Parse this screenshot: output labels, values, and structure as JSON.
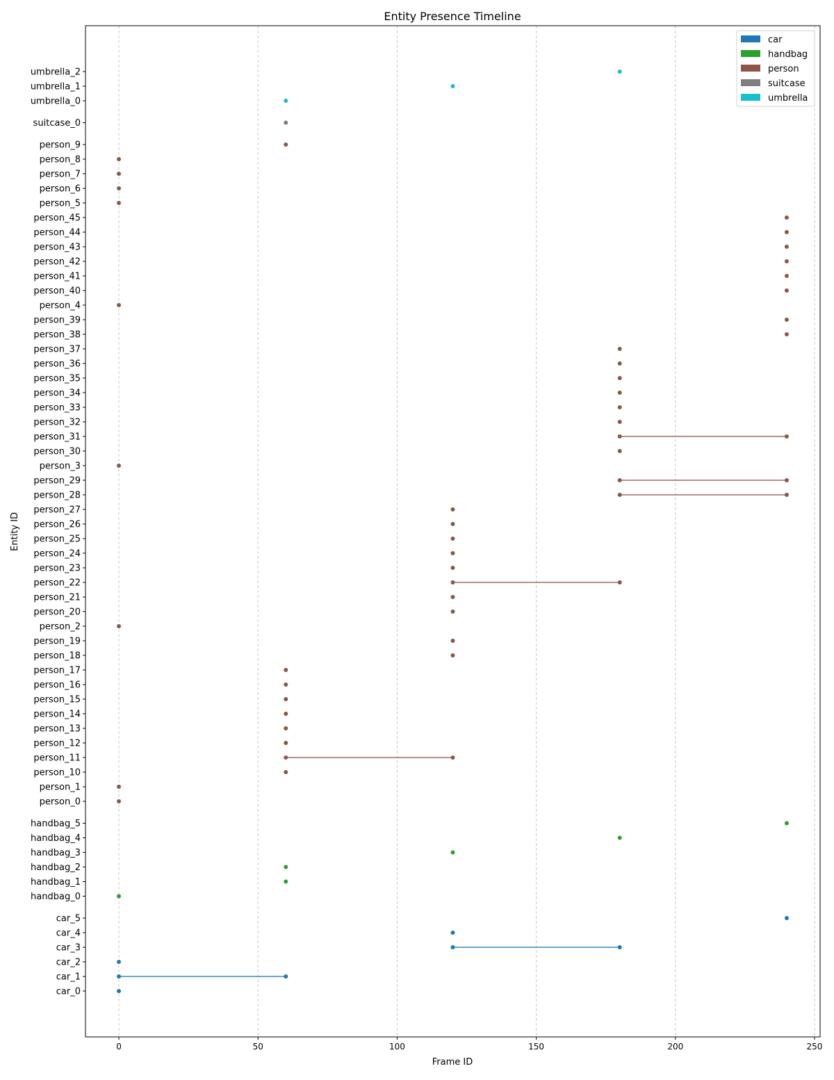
{
  "chart_data": {
    "type": "timeline-scatter",
    "title": "Entity Presence Timeline",
    "xlabel": "Frame ID",
    "ylabel": "Entity ID",
    "xlim": [
      -12,
      252
    ],
    "xticks": [
      0,
      50,
      100,
      150,
      200,
      250
    ],
    "grid": "x-dashed",
    "legend_placement": "top-right",
    "categories": [
      {
        "name": "car",
        "color": "#1f77b4"
      },
      {
        "name": "handbag",
        "color": "#2ca02c"
      },
      {
        "name": "person",
        "color": "#8c564b"
      },
      {
        "name": "suitcase",
        "color": "#7f7f7f"
      },
      {
        "name": "umbrella",
        "color": "#17becf"
      }
    ],
    "entities": [
      {
        "id": "car_0",
        "category": "car",
        "frames": [
          0
        ]
      },
      {
        "id": "car_1",
        "category": "car",
        "frames": [
          0,
          60
        ]
      },
      {
        "id": "car_2",
        "category": "car",
        "frames": [
          0
        ]
      },
      {
        "id": "car_3",
        "category": "car",
        "frames": [
          120,
          180
        ]
      },
      {
        "id": "car_4",
        "category": "car",
        "frames": [
          120
        ]
      },
      {
        "id": "car_5",
        "category": "car",
        "frames": [
          240
        ]
      },
      {
        "id": "handbag_0",
        "category": "handbag",
        "frames": [
          0
        ]
      },
      {
        "id": "handbag_1",
        "category": "handbag",
        "frames": [
          60
        ]
      },
      {
        "id": "handbag_2",
        "category": "handbag",
        "frames": [
          60
        ]
      },
      {
        "id": "handbag_3",
        "category": "handbag",
        "frames": [
          120
        ]
      },
      {
        "id": "handbag_4",
        "category": "handbag",
        "frames": [
          180
        ]
      },
      {
        "id": "handbag_5",
        "category": "handbag",
        "frames": [
          240
        ]
      },
      {
        "id": "person_0",
        "category": "person",
        "frames": [
          0
        ]
      },
      {
        "id": "person_1",
        "category": "person",
        "frames": [
          0
        ]
      },
      {
        "id": "person_10",
        "category": "person",
        "frames": [
          60
        ]
      },
      {
        "id": "person_11",
        "category": "person",
        "frames": [
          60,
          120
        ]
      },
      {
        "id": "person_12",
        "category": "person",
        "frames": [
          60
        ]
      },
      {
        "id": "person_13",
        "category": "person",
        "frames": [
          60
        ]
      },
      {
        "id": "person_14",
        "category": "person",
        "frames": [
          60
        ]
      },
      {
        "id": "person_15",
        "category": "person",
        "frames": [
          60
        ]
      },
      {
        "id": "person_16",
        "category": "person",
        "frames": [
          60
        ]
      },
      {
        "id": "person_17",
        "category": "person",
        "frames": [
          60
        ]
      },
      {
        "id": "person_18",
        "category": "person",
        "frames": [
          120
        ]
      },
      {
        "id": "person_19",
        "category": "person",
        "frames": [
          120
        ]
      },
      {
        "id": "person_2",
        "category": "person",
        "frames": [
          0
        ]
      },
      {
        "id": "person_20",
        "category": "person",
        "frames": [
          120
        ]
      },
      {
        "id": "person_21",
        "category": "person",
        "frames": [
          120
        ]
      },
      {
        "id": "person_22",
        "category": "person",
        "frames": [
          120,
          180
        ]
      },
      {
        "id": "person_23",
        "category": "person",
        "frames": [
          120
        ]
      },
      {
        "id": "person_24",
        "category": "person",
        "frames": [
          120
        ]
      },
      {
        "id": "person_25",
        "category": "person",
        "frames": [
          120
        ]
      },
      {
        "id": "person_26",
        "category": "person",
        "frames": [
          120
        ]
      },
      {
        "id": "person_27",
        "category": "person",
        "frames": [
          120
        ]
      },
      {
        "id": "person_28",
        "category": "person",
        "frames": [
          180,
          240
        ]
      },
      {
        "id": "person_29",
        "category": "person",
        "frames": [
          180,
          240
        ]
      },
      {
        "id": "person_3",
        "category": "person",
        "frames": [
          0
        ]
      },
      {
        "id": "person_30",
        "category": "person",
        "frames": [
          180
        ]
      },
      {
        "id": "person_31",
        "category": "person",
        "frames": [
          180,
          240
        ]
      },
      {
        "id": "person_32",
        "category": "person",
        "frames": [
          180
        ]
      },
      {
        "id": "person_33",
        "category": "person",
        "frames": [
          180
        ]
      },
      {
        "id": "person_34",
        "category": "person",
        "frames": [
          180
        ]
      },
      {
        "id": "person_35",
        "category": "person",
        "frames": [
          180
        ]
      },
      {
        "id": "person_36",
        "category": "person",
        "frames": [
          180
        ]
      },
      {
        "id": "person_37",
        "category": "person",
        "frames": [
          180
        ]
      },
      {
        "id": "person_38",
        "category": "person",
        "frames": [
          240
        ]
      },
      {
        "id": "person_39",
        "category": "person",
        "frames": [
          240
        ]
      },
      {
        "id": "person_4",
        "category": "person",
        "frames": [
          0
        ]
      },
      {
        "id": "person_40",
        "category": "person",
        "frames": [
          240
        ]
      },
      {
        "id": "person_41",
        "category": "person",
        "frames": [
          240
        ]
      },
      {
        "id": "person_42",
        "category": "person",
        "frames": [
          240
        ]
      },
      {
        "id": "person_43",
        "category": "person",
        "frames": [
          240
        ]
      },
      {
        "id": "person_44",
        "category": "person",
        "frames": [
          240
        ]
      },
      {
        "id": "person_45",
        "category": "person",
        "frames": [
          240
        ]
      },
      {
        "id": "person_5",
        "category": "person",
        "frames": [
          0
        ]
      },
      {
        "id": "person_6",
        "category": "person",
        "frames": [
          0
        ]
      },
      {
        "id": "person_7",
        "category": "person",
        "frames": [
          0
        ]
      },
      {
        "id": "person_8",
        "category": "person",
        "frames": [
          0
        ]
      },
      {
        "id": "person_9",
        "category": "person",
        "frames": [
          60
        ]
      },
      {
        "id": "suitcase_0",
        "category": "suitcase",
        "frames": [
          60
        ]
      },
      {
        "id": "umbrella_0",
        "category": "umbrella",
        "frames": [
          60
        ]
      },
      {
        "id": "umbrella_1",
        "category": "umbrella",
        "frames": [
          120
        ]
      },
      {
        "id": "umbrella_2",
        "category": "umbrella",
        "frames": [
          180
        ]
      }
    ]
  }
}
